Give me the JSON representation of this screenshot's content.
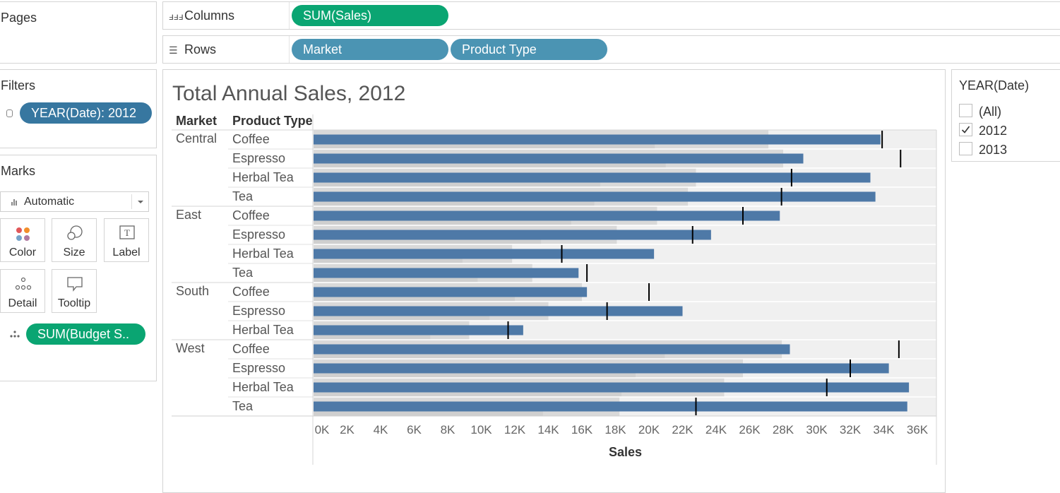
{
  "shelves": {
    "pages_title": "Pages",
    "columns_label": "Columns",
    "rows_label": "Rows",
    "columns_pills": [
      "SUM(Sales)"
    ],
    "rows_pills": [
      "Market",
      "Product Type"
    ]
  },
  "filters": {
    "title": "Filters",
    "pills": [
      "YEAR(Date): 2012"
    ]
  },
  "marks": {
    "title": "Marks",
    "mark_type": "Automatic",
    "buttons": [
      "Color",
      "Size",
      "Label",
      "Detail",
      "Tooltip"
    ],
    "detail_pill": "SUM(Budget S.."
  },
  "year_filter_card": {
    "title": "YEAR(Date)",
    "options": [
      {
        "label": "(All)",
        "checked": false
      },
      {
        "label": "2012",
        "checked": true
      },
      {
        "label": "2013",
        "checked": false
      }
    ]
  },
  "viz": {
    "title": "Total Annual Sales, 2012",
    "col_headers": [
      "Market",
      "Product Type"
    ]
  },
  "chart_data": {
    "type": "bar",
    "title": "Total Annual Sales, 2012",
    "xlabel": "Sales",
    "ylabel": "",
    "xlim": [
      0,
      37000
    ],
    "x_ticks": [
      "0K",
      "2K",
      "4K",
      "6K",
      "8K",
      "10K",
      "12K",
      "14K",
      "16K",
      "18K",
      "20K",
      "22K",
      "24K",
      "26K",
      "28K",
      "30K",
      "32K",
      "34K",
      "36K"
    ],
    "bar_color": "#4e79a7",
    "groups": [
      {
        "market": "Central",
        "rows": [
          {
            "product": "Coffee",
            "sales": 33800,
            "budget": 33900
          },
          {
            "product": "Espresso",
            "sales": 29200,
            "budget": 35000
          },
          {
            "product": "Herbal Tea",
            "sales": 33200,
            "budget": 28500
          },
          {
            "product": "Tea",
            "sales": 33500,
            "budget": 27900
          }
        ]
      },
      {
        "market": "East",
        "rows": [
          {
            "product": "Coffee",
            "sales": 27800,
            "budget": 25600
          },
          {
            "product": "Espresso",
            "sales": 23700,
            "budget": 22600
          },
          {
            "product": "Herbal Tea",
            "sales": 20300,
            "budget": 14800
          },
          {
            "product": "Tea",
            "sales": 15800,
            "budget": 16300
          }
        ]
      },
      {
        "market": "South",
        "rows": [
          {
            "product": "Coffee",
            "sales": 16300,
            "budget": 20000
          },
          {
            "product": "Espresso",
            "sales": 22000,
            "budget": 17500
          },
          {
            "product": "Herbal Tea",
            "sales": 12500,
            "budget": 11600
          }
        ]
      },
      {
        "market": "West",
        "rows": [
          {
            "product": "Coffee",
            "sales": 28400,
            "budget": 34900
          },
          {
            "product": "Espresso",
            "sales": 34300,
            "budget": 32000
          },
          {
            "product": "Herbal Tea",
            "sales": 35500,
            "budget": 30600
          },
          {
            "product": "Tea",
            "sales": 35400,
            "budget": 22800
          }
        ]
      }
    ]
  }
}
